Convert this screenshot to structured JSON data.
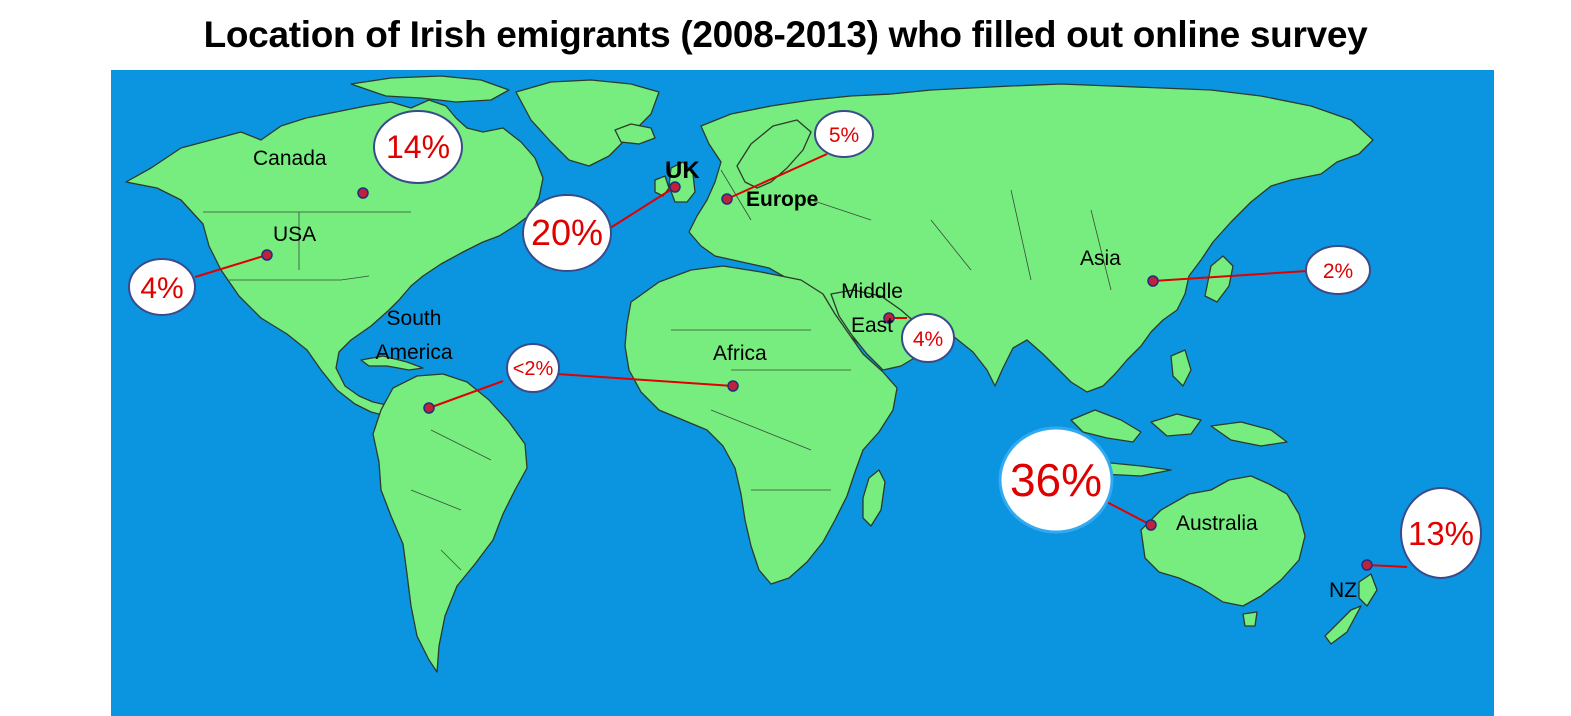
{
  "title": "Location of Irish emigrants (2008-2013) who filled out online survey",
  "colors": {
    "ocean": "#0b95e0",
    "land": "#77ec7f",
    "percent_text": "#e00000",
    "leader_line": "#e00000",
    "marker": "#c0223a",
    "bubble_outline": "#3a4a8a"
  },
  "regions": [
    {
      "key": "canada",
      "label": "Canada",
      "value": "14%"
    },
    {
      "key": "usa",
      "label": "USA",
      "value": "4%"
    },
    {
      "key": "uk",
      "label": "UK",
      "value": "20%"
    },
    {
      "key": "europe",
      "label": "Europe",
      "value": "5%"
    },
    {
      "key": "south-america",
      "label_lines": [
        "South",
        "America"
      ],
      "value": "<2%"
    },
    {
      "key": "middle-east",
      "label_lines": [
        "Middle",
        "East"
      ],
      "value": "4%"
    },
    {
      "key": "asia",
      "label": "Asia",
      "value": "2%"
    },
    {
      "key": "australia",
      "label": "Australia",
      "value": "36%"
    },
    {
      "key": "nz",
      "label": "NZ",
      "value": "13%"
    }
  ]
}
